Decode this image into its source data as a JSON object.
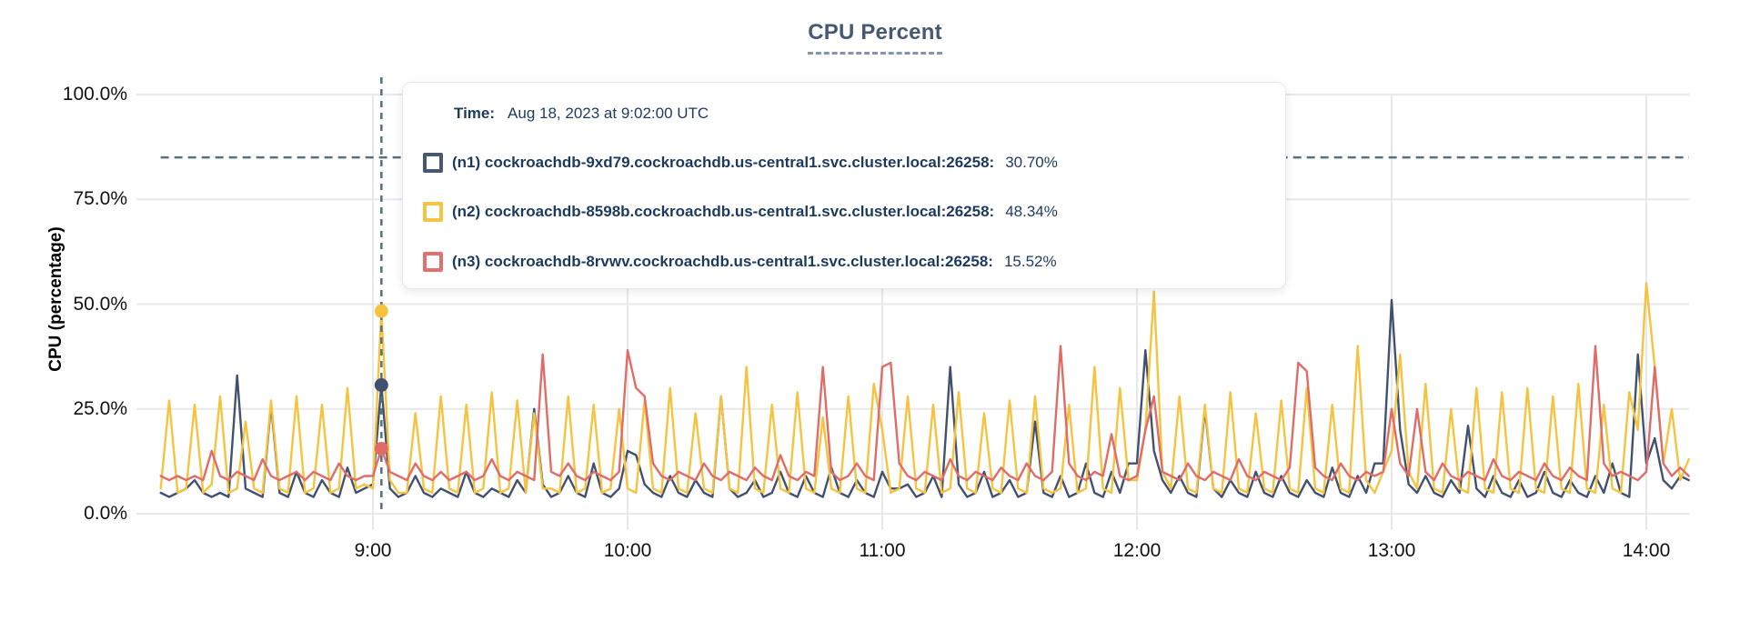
{
  "title": "CPU Percent",
  "y_axis": {
    "title": "CPU (percentage)"
  },
  "tooltip": {
    "time_label": "Time:",
    "time_value": "Aug 18, 2023 at 9:02:00 UTC",
    "rows": [
      {
        "id": "n1",
        "label": "(n1) cockroachdb-9xd79.cockroachdb.us-central1.svc.cluster.local:26258:",
        "value": "30.70%",
        "color": "#475872"
      },
      {
        "id": "n2",
        "label": "(n2) cockroachdb-8598b.cockroachdb.us-central1.svc.cluster.local:26258:",
        "value": "48.34%",
        "color": "#f5c442"
      },
      {
        "id": "n3",
        "label": "(n3) cockroachdb-8rvwv.cockroachdb.us-central1.svc.cluster.local:26258:",
        "value": "15.52%",
        "color": "#e0716c"
      }
    ]
  },
  "colors": {
    "grid": "#e8e8e8",
    "dashed_guides": "#55707e",
    "title": "#475872",
    "n1_line": "#41516f",
    "n2_line": "#f6c33f",
    "n3_line": "#e06c68"
  },
  "chart_data": {
    "type": "line",
    "title": "CPU Percent",
    "ylabel": "CPU (percentage)",
    "ylim": [
      0,
      100
    ],
    "grid": true,
    "legend_position": "tooltip-overlay",
    "y_ticks": [
      {
        "label": "100.0%",
        "value": 100
      },
      {
        "label": "75.0%",
        "value": 75
      },
      {
        "label": "50.0%",
        "value": 50
      },
      {
        "label": "25.0%",
        "value": 25
      },
      {
        "label": "0.0%",
        "value": 0
      }
    ],
    "x_ticks": [
      {
        "label": "9:00",
        "minutes": 540
      },
      {
        "label": "10:00",
        "minutes": 600
      },
      {
        "label": "11:00",
        "minutes": 660
      },
      {
        "label": "12:00",
        "minutes": 720
      },
      {
        "label": "13:00",
        "minutes": 780
      },
      {
        "label": "14:00",
        "minutes": 840
      }
    ],
    "x_start_minutes": 490,
    "x_step_minutes": 2,
    "threshold_percent": 85,
    "hover": {
      "time_label": "Aug 18, 2023 at 9:02:00 UTC",
      "minutes": 542,
      "points": [
        {
          "series": "n1",
          "value": 30.7
        },
        {
          "series": "n2",
          "value": 48.34
        },
        {
          "series": "n3",
          "value": 15.52
        }
      ]
    },
    "series": [
      {
        "id": "n1",
        "name": "cockroachdb-9xd79.cockroachdb.us-central1.svc.cluster.local:26258",
        "color": "#41516f",
        "values": [
          5,
          4,
          5,
          6,
          8,
          5,
          4,
          5,
          4,
          33,
          6,
          5,
          4,
          26,
          5,
          4,
          10,
          5,
          4,
          8,
          5,
          4,
          11,
          5,
          6,
          7,
          30.7,
          6,
          4,
          5,
          9,
          5,
          4,
          6,
          5,
          4,
          10,
          5,
          4,
          6,
          5,
          4,
          8,
          5,
          25,
          7,
          4,
          5,
          9,
          5,
          4,
          12,
          5,
          4,
          6,
          15,
          14,
          7,
          5,
          4,
          9,
          5,
          4,
          8,
          5,
          4,
          28,
          6,
          4,
          5,
          8,
          4,
          5,
          10,
          5,
          4,
          9,
          5,
          4,
          11,
          5,
          4,
          8,
          5,
          4,
          10,
          6,
          6,
          7,
          4,
          5,
          9,
          4,
          35,
          7,
          4,
          5,
          10,
          4,
          5,
          8,
          4,
          5,
          22,
          5,
          4,
          9,
          4,
          5,
          12,
          5,
          4,
          10,
          5,
          12,
          12,
          39,
          15,
          8,
          5,
          9,
          5,
          4,
          25,
          6,
          4,
          8,
          5,
          4,
          10,
          5,
          4,
          9,
          5,
          4,
          8,
          5,
          4,
          11,
          5,
          4,
          9,
          5,
          12,
          12,
          51,
          20,
          7,
          5,
          9,
          5,
          4,
          8,
          5,
          21,
          6,
          4,
          9,
          5,
          4,
          8,
          4,
          5,
          10,
          5,
          4,
          8,
          5,
          4,
          9,
          5,
          12,
          5,
          4,
          38,
          12,
          18,
          8,
          6,
          9,
          8
        ]
      },
      {
        "id": "n2",
        "name": "cockroachdb-8598b.cockroachdb.us-central1.svc.cluster.local:26258",
        "color": "#f6c33f",
        "values": [
          6,
          27,
          5,
          6,
          26,
          5,
          7,
          28,
          5,
          6,
          22,
          6,
          5,
          27,
          6,
          5,
          28,
          5,
          6,
          26,
          5,
          6,
          30,
          6,
          7,
          6,
          48.34,
          8,
          5,
          5,
          24,
          6,
          5,
          28,
          6,
          5,
          26,
          5,
          6,
          29,
          5,
          6,
          27,
          5,
          24,
          6,
          6,
          5,
          28,
          5,
          6,
          26,
          5,
          6,
          25,
          6,
          5,
          27,
          6,
          5,
          30,
          6,
          5,
          24,
          6,
          5,
          28,
          6,
          5,
          35,
          6,
          5,
          26,
          6,
          5,
          29,
          6,
          5,
          23,
          6,
          5,
          28,
          6,
          5,
          31,
          20,
          5,
          6,
          28,
          6,
          5,
          26,
          5,
          6,
          29,
          6,
          5,
          24,
          6,
          5,
          27,
          6,
          5,
          28,
          6,
          5,
          6,
          26,
          5,
          6,
          35,
          6,
          5,
          30,
          8,
          8,
          20,
          53,
          10,
          6,
          28,
          6,
          5,
          26,
          6,
          5,
          29,
          6,
          5,
          24,
          6,
          5,
          27,
          6,
          5,
          30,
          6,
          5,
          26,
          6,
          5,
          40,
          8,
          5,
          10,
          15,
          38,
          10,
          6,
          31,
          6,
          5,
          25,
          6,
          5,
          30,
          6,
          5,
          29,
          6,
          5,
          30,
          6,
          5,
          28,
          6,
          5,
          31,
          6,
          5,
          26,
          6,
          5,
          29,
          20,
          55,
          35,
          12,
          25,
          8,
          13
        ]
      },
      {
        "id": "n3",
        "name": "cockroachdb-8rvwv.cockroachdb.us-central1.svc.cluster.local:26258",
        "color": "#e06c68",
        "values": [
          9,
          8,
          9,
          8,
          9,
          8,
          15,
          9,
          8,
          10,
          9,
          8,
          13,
          9,
          8,
          9,
          10,
          8,
          10,
          9,
          8,
          12,
          9,
          8,
          9,
          9,
          15.52,
          10,
          9,
          8,
          12,
          9,
          8,
          10,
          8,
          9,
          10,
          8,
          9,
          13,
          9,
          8,
          10,
          9,
          8,
          38,
          10,
          9,
          12,
          9,
          8,
          10,
          9,
          8,
          10,
          39,
          30,
          28,
          12,
          9,
          8,
          10,
          9,
          8,
          12,
          9,
          8,
          10,
          9,
          8,
          11,
          9,
          8,
          14,
          9,
          8,
          10,
          9,
          35,
          10,
          8,
          9,
          12,
          9,
          8,
          35,
          36,
          12,
          9,
          8,
          10,
          9,
          8,
          13,
          9,
          8,
          10,
          9,
          8,
          11,
          9,
          8,
          12,
          9,
          8,
          10,
          40,
          12,
          9,
          8,
          10,
          9,
          19,
          9,
          8,
          9,
          20,
          28,
          10,
          9,
          8,
          12,
          9,
          8,
          10,
          9,
          8,
          13,
          9,
          8,
          10,
          9,
          8,
          11,
          36,
          34,
          11,
          9,
          8,
          12,
          9,
          8,
          10,
          9,
          10,
          25,
          12,
          9,
          25,
          10,
          8,
          12,
          9,
          8,
          10,
          9,
          8,
          13,
          9,
          8,
          10,
          9,
          8,
          12,
          9,
          8,
          11,
          9,
          8,
          40,
          12,
          9,
          10,
          9,
          8,
          10,
          35,
          12,
          9,
          11,
          9
        ]
      }
    ]
  }
}
